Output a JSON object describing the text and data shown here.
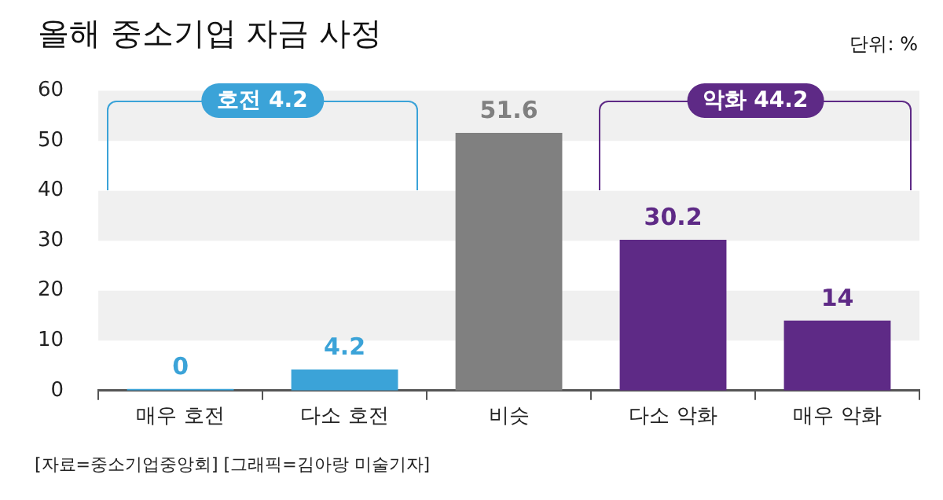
{
  "chart_data": {
    "type": "bar",
    "title": "올해 중소기업 자금 사정",
    "categories": [
      "매우 호전",
      "다소 호전",
      "비슷",
      "다소 악화",
      "매우 악화"
    ],
    "values": [
      0,
      4.2,
      51.6,
      30.2,
      14
    ],
    "colors": [
      "#3ba3d8",
      "#3ba3d8",
      "#808080",
      "#5e2a86",
      "#5e2a86"
    ],
    "ylim": [
      0,
      60
    ],
    "yticks": [
      0,
      10,
      20,
      30,
      40,
      50,
      60
    ],
    "data_labels": true,
    "bands": [
      {
        "axis": "y",
        "from": 10,
        "to": 20,
        "color": "#f0f0f0"
      },
      {
        "axis": "y",
        "from": 30,
        "to": 40,
        "color": "#f0f0f0"
      },
      {
        "axis": "y",
        "from": 50,
        "to": 60,
        "color": "#f0f0f0"
      }
    ],
    "annotations": [
      "단위: %",
      "호전 4.2",
      "악화 44.2",
      "[자료=중소기업중앙회] [그래픽=김아랑 미술기자]"
    ]
  }
}
